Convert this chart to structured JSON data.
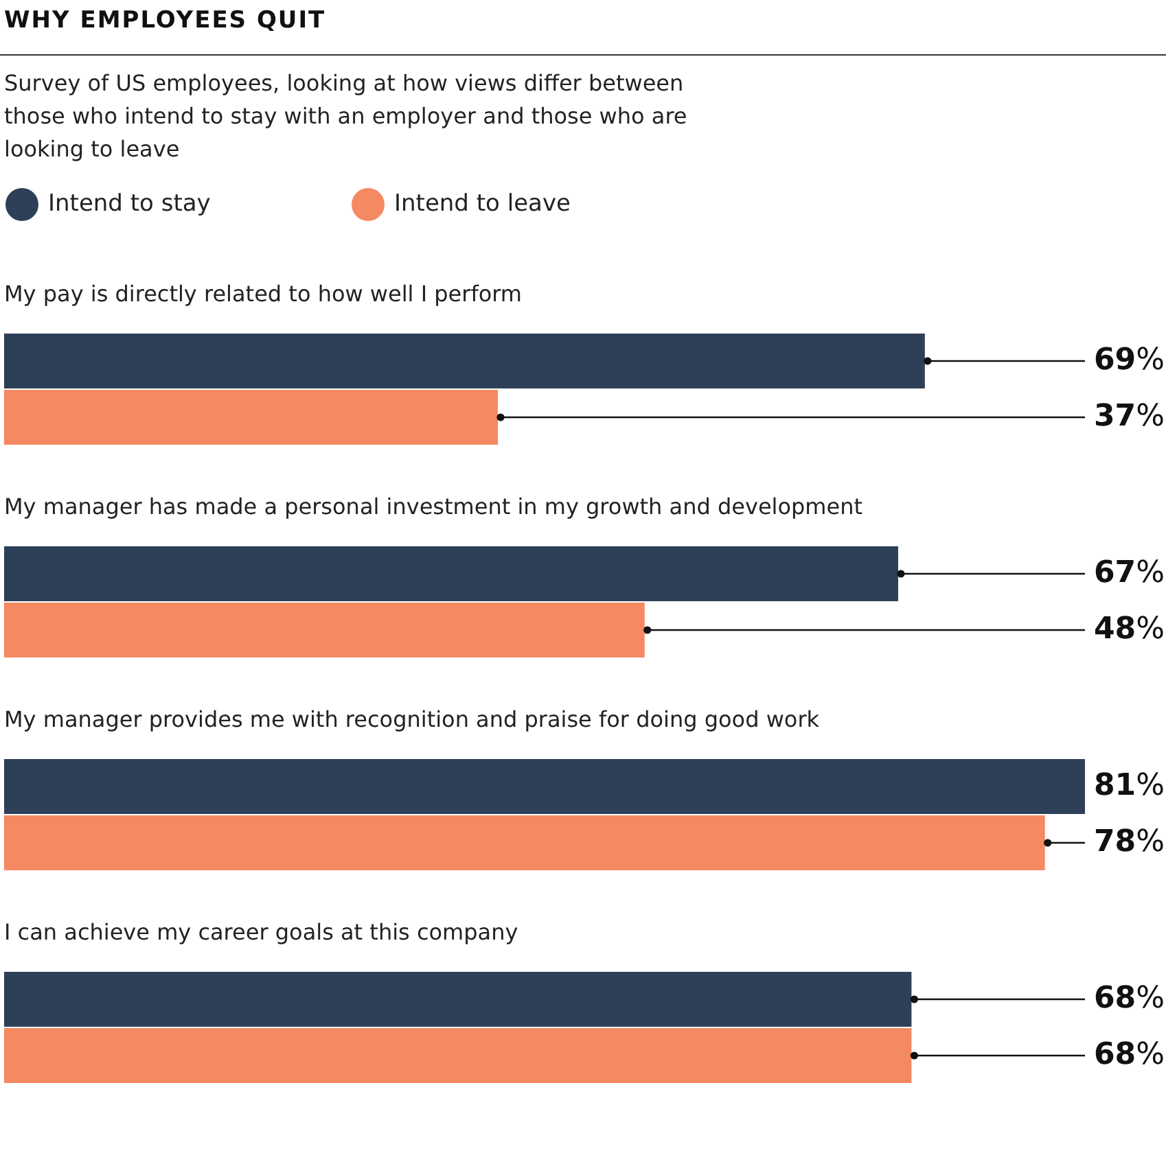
{
  "chart_data": {
    "type": "bar",
    "orientation": "horizontal",
    "title": "WHY EMPLOYEES QUIT",
    "subtitle": "Survey of US employees, looking at how views differ between those who intend to stay with an employer and those who are looking to leave",
    "categories": [
      "My pay is directly related to how well I perform",
      "My manager has made a personal investment in my growth and development",
      "My manager provides me with recognition and praise for doing good work",
      "I can achieve my career goals at this company"
    ],
    "series": [
      {
        "name": "Intend to stay",
        "color": "#2e3f58",
        "values": [
          69,
          67,
          81,
          68
        ],
        "value_labels": [
          "69%",
          "67%",
          "81%",
          "68%"
        ]
      },
      {
        "name": "Intend to leave",
        "color": "#f58962",
        "values": [
          37,
          48,
          78,
          68
        ],
        "value_labels": [
          "37%",
          "48%",
          "78%",
          "68%"
        ]
      }
    ],
    "legend": "top left"
  }
}
